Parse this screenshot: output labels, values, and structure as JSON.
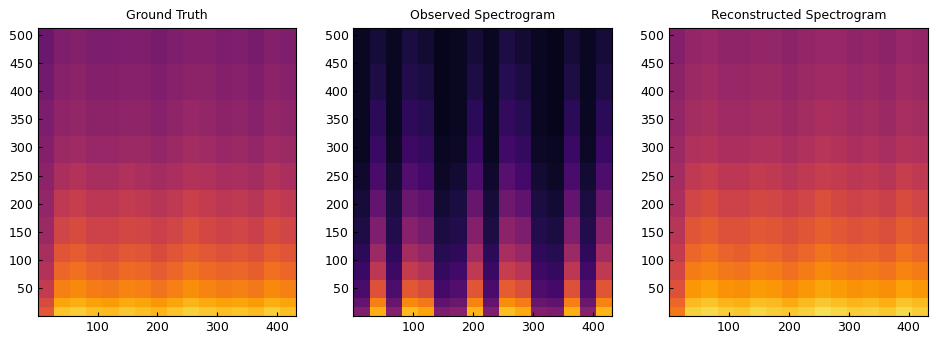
{
  "chart_data": [
    {
      "type": "heatmap",
      "title": "Ground Truth",
      "color": "inferno",
      "xlim": [
        0,
        432
      ],
      "ylim": [
        0,
        513
      ],
      "xticks": [
        100,
        200,
        300,
        400
      ],
      "yticks": [
        50,
        100,
        150,
        200,
        250,
        300,
        350,
        400,
        450,
        500
      ],
      "x_edges": [
        0,
        27,
        54,
        81,
        108,
        135,
        162,
        189,
        216,
        243,
        270,
        297,
        324,
        351,
        378,
        405,
        432
      ],
      "y_edges": [
        0,
        16,
        32,
        64,
        96,
        128,
        176,
        224,
        272,
        320,
        384,
        448,
        513
      ],
      "cell_range": [
        0,
        1
      ],
      "cells": [
        [
          0.62,
          0.86,
          0.88,
          0.85,
          0.84,
          0.87,
          0.85,
          0.83,
          0.86,
          0.89,
          0.87,
          0.85,
          0.86,
          0.84,
          0.88,
          0.85
        ],
        [
          0.58,
          0.8,
          0.82,
          0.79,
          0.78,
          0.81,
          0.8,
          0.77,
          0.8,
          0.83,
          0.81,
          0.79,
          0.8,
          0.78,
          0.82,
          0.8
        ],
        [
          0.52,
          0.72,
          0.74,
          0.71,
          0.7,
          0.73,
          0.72,
          0.69,
          0.72,
          0.75,
          0.73,
          0.71,
          0.72,
          0.7,
          0.74,
          0.72
        ],
        [
          0.48,
          0.66,
          0.68,
          0.65,
          0.64,
          0.67,
          0.66,
          0.63,
          0.66,
          0.69,
          0.67,
          0.65,
          0.66,
          0.64,
          0.68,
          0.66
        ],
        [
          0.45,
          0.61,
          0.63,
          0.6,
          0.59,
          0.62,
          0.61,
          0.58,
          0.61,
          0.64,
          0.62,
          0.6,
          0.61,
          0.59,
          0.63,
          0.61
        ],
        [
          0.42,
          0.56,
          0.58,
          0.55,
          0.55,
          0.57,
          0.56,
          0.54,
          0.56,
          0.59,
          0.57,
          0.55,
          0.56,
          0.54,
          0.58,
          0.56
        ],
        [
          0.4,
          0.51,
          0.53,
          0.5,
          0.5,
          0.52,
          0.51,
          0.49,
          0.51,
          0.54,
          0.52,
          0.5,
          0.51,
          0.49,
          0.53,
          0.51
        ],
        [
          0.38,
          0.46,
          0.48,
          0.45,
          0.45,
          0.47,
          0.46,
          0.44,
          0.46,
          0.48,
          0.47,
          0.45,
          0.46,
          0.44,
          0.48,
          0.46
        ],
        [
          0.36,
          0.42,
          0.43,
          0.41,
          0.41,
          0.42,
          0.42,
          0.4,
          0.42,
          0.44,
          0.43,
          0.41,
          0.42,
          0.4,
          0.43,
          0.42
        ],
        [
          0.34,
          0.39,
          0.4,
          0.38,
          0.38,
          0.39,
          0.39,
          0.37,
          0.39,
          0.41,
          0.4,
          0.38,
          0.39,
          0.37,
          0.4,
          0.39
        ],
        [
          0.32,
          0.37,
          0.38,
          0.36,
          0.36,
          0.37,
          0.37,
          0.35,
          0.37,
          0.38,
          0.38,
          0.36,
          0.37,
          0.35,
          0.38,
          0.37
        ],
        [
          0.3,
          0.35,
          0.36,
          0.34,
          0.34,
          0.35,
          0.35,
          0.33,
          0.35,
          0.36,
          0.36,
          0.34,
          0.35,
          0.33,
          0.36,
          0.35
        ]
      ]
    },
    {
      "type": "heatmap",
      "title": "Observed Spectrogram",
      "color": "inferno",
      "xlim": [
        0,
        432
      ],
      "ylim": [
        0,
        513
      ],
      "xticks": [
        100,
        200,
        300,
        400
      ],
      "yticks": [
        50,
        100,
        150,
        200,
        250,
        300,
        350,
        400,
        450,
        500
      ],
      "x_edges": [
        0,
        27,
        54,
        81,
        108,
        135,
        162,
        189,
        216,
        243,
        270,
        297,
        324,
        351,
        378,
        405,
        432
      ],
      "y_edges": [
        0,
        16,
        32,
        64,
        96,
        128,
        176,
        224,
        272,
        320,
        384,
        448,
        513
      ],
      "cell_range": [
        0,
        1
      ],
      "cells": [
        [
          0.35,
          0.82,
          0.36,
          0.84,
          0.8,
          0.34,
          0.37,
          0.83,
          0.35,
          0.85,
          0.81,
          0.36,
          0.34,
          0.82,
          0.37,
          0.83
        ],
        [
          0.28,
          0.72,
          0.29,
          0.74,
          0.7,
          0.27,
          0.3,
          0.73,
          0.28,
          0.75,
          0.71,
          0.29,
          0.27,
          0.72,
          0.3,
          0.73
        ],
        [
          0.22,
          0.6,
          0.23,
          0.62,
          0.58,
          0.21,
          0.24,
          0.61,
          0.22,
          0.63,
          0.59,
          0.23,
          0.21,
          0.6,
          0.24,
          0.61
        ],
        [
          0.18,
          0.5,
          0.19,
          0.52,
          0.48,
          0.17,
          0.2,
          0.51,
          0.18,
          0.53,
          0.49,
          0.19,
          0.17,
          0.5,
          0.2,
          0.51
        ],
        [
          0.15,
          0.42,
          0.16,
          0.44,
          0.4,
          0.14,
          0.16,
          0.43,
          0.15,
          0.45,
          0.41,
          0.16,
          0.14,
          0.42,
          0.16,
          0.43
        ],
        [
          0.12,
          0.35,
          0.13,
          0.37,
          0.33,
          0.11,
          0.13,
          0.36,
          0.12,
          0.38,
          0.34,
          0.13,
          0.11,
          0.35,
          0.13,
          0.36
        ],
        [
          0.1,
          0.28,
          0.11,
          0.3,
          0.27,
          0.09,
          0.11,
          0.29,
          0.1,
          0.31,
          0.27,
          0.11,
          0.09,
          0.28,
          0.11,
          0.29
        ],
        [
          0.08,
          0.22,
          0.09,
          0.24,
          0.21,
          0.07,
          0.09,
          0.23,
          0.08,
          0.25,
          0.21,
          0.09,
          0.07,
          0.22,
          0.09,
          0.23
        ],
        [
          0.06,
          0.18,
          0.07,
          0.19,
          0.17,
          0.06,
          0.07,
          0.18,
          0.06,
          0.2,
          0.17,
          0.07,
          0.06,
          0.18,
          0.07,
          0.18
        ],
        [
          0.06,
          0.15,
          0.06,
          0.16,
          0.14,
          0.05,
          0.06,
          0.15,
          0.06,
          0.17,
          0.14,
          0.06,
          0.05,
          0.15,
          0.06,
          0.15
        ],
        [
          0.06,
          0.12,
          0.06,
          0.13,
          0.11,
          0.05,
          0.06,
          0.12,
          0.06,
          0.14,
          0.11,
          0.06,
          0.05,
          0.12,
          0.06,
          0.12
        ],
        [
          0.06,
          0.1,
          0.06,
          0.11,
          0.09,
          0.05,
          0.06,
          0.1,
          0.06,
          0.12,
          0.09,
          0.06,
          0.05,
          0.1,
          0.06,
          0.1
        ]
      ]
    },
    {
      "type": "heatmap",
      "title": "Reconstructed Spectrogram",
      "color": "inferno",
      "xlim": [
        0,
        432
      ],
      "ylim": [
        0,
        513
      ],
      "xticks": [
        100,
        200,
        300,
        400
      ],
      "yticks": [
        50,
        100,
        150,
        200,
        250,
        300,
        350,
        400,
        450,
        500
      ],
      "x_edges": [
        0,
        27,
        54,
        81,
        108,
        135,
        162,
        189,
        216,
        243,
        270,
        297,
        324,
        351,
        378,
        405,
        432
      ],
      "y_edges": [
        0,
        16,
        32,
        64,
        96,
        128,
        176,
        224,
        272,
        320,
        384,
        448,
        513
      ],
      "cell_range": [
        0,
        1
      ],
      "cells": [
        [
          0.7,
          0.89,
          0.91,
          0.88,
          0.87,
          0.9,
          0.88,
          0.87,
          0.89,
          0.92,
          0.9,
          0.88,
          0.89,
          0.87,
          0.91,
          0.88
        ],
        [
          0.66,
          0.84,
          0.86,
          0.83,
          0.82,
          0.85,
          0.84,
          0.81,
          0.84,
          0.87,
          0.85,
          0.83,
          0.84,
          0.82,
          0.86,
          0.84
        ],
        [
          0.6,
          0.77,
          0.79,
          0.76,
          0.75,
          0.78,
          0.77,
          0.74,
          0.77,
          0.8,
          0.78,
          0.76,
          0.77,
          0.75,
          0.79,
          0.77
        ],
        [
          0.56,
          0.71,
          0.73,
          0.7,
          0.69,
          0.72,
          0.71,
          0.68,
          0.71,
          0.74,
          0.72,
          0.7,
          0.71,
          0.69,
          0.73,
          0.71
        ],
        [
          0.52,
          0.66,
          0.68,
          0.65,
          0.64,
          0.67,
          0.66,
          0.63,
          0.66,
          0.69,
          0.67,
          0.65,
          0.66,
          0.64,
          0.68,
          0.66
        ],
        [
          0.49,
          0.61,
          0.63,
          0.6,
          0.6,
          0.62,
          0.61,
          0.59,
          0.61,
          0.64,
          0.62,
          0.6,
          0.61,
          0.59,
          0.63,
          0.61
        ],
        [
          0.46,
          0.56,
          0.58,
          0.55,
          0.55,
          0.57,
          0.56,
          0.54,
          0.56,
          0.59,
          0.57,
          0.55,
          0.56,
          0.54,
          0.58,
          0.56
        ],
        [
          0.44,
          0.51,
          0.53,
          0.5,
          0.5,
          0.52,
          0.51,
          0.49,
          0.51,
          0.53,
          0.52,
          0.5,
          0.51,
          0.49,
          0.53,
          0.51
        ],
        [
          0.42,
          0.47,
          0.48,
          0.46,
          0.46,
          0.47,
          0.47,
          0.45,
          0.47,
          0.49,
          0.48,
          0.46,
          0.47,
          0.45,
          0.48,
          0.47
        ],
        [
          0.4,
          0.44,
          0.45,
          0.43,
          0.43,
          0.44,
          0.44,
          0.42,
          0.44,
          0.46,
          0.45,
          0.43,
          0.44,
          0.42,
          0.45,
          0.44
        ],
        [
          0.38,
          0.42,
          0.43,
          0.41,
          0.41,
          0.42,
          0.42,
          0.4,
          0.42,
          0.43,
          0.43,
          0.41,
          0.42,
          0.4,
          0.43,
          0.42
        ],
        [
          0.36,
          0.4,
          0.41,
          0.39,
          0.39,
          0.4,
          0.4,
          0.38,
          0.4,
          0.41,
          0.41,
          0.39,
          0.4,
          0.38,
          0.41,
          0.4
        ]
      ]
    }
  ]
}
